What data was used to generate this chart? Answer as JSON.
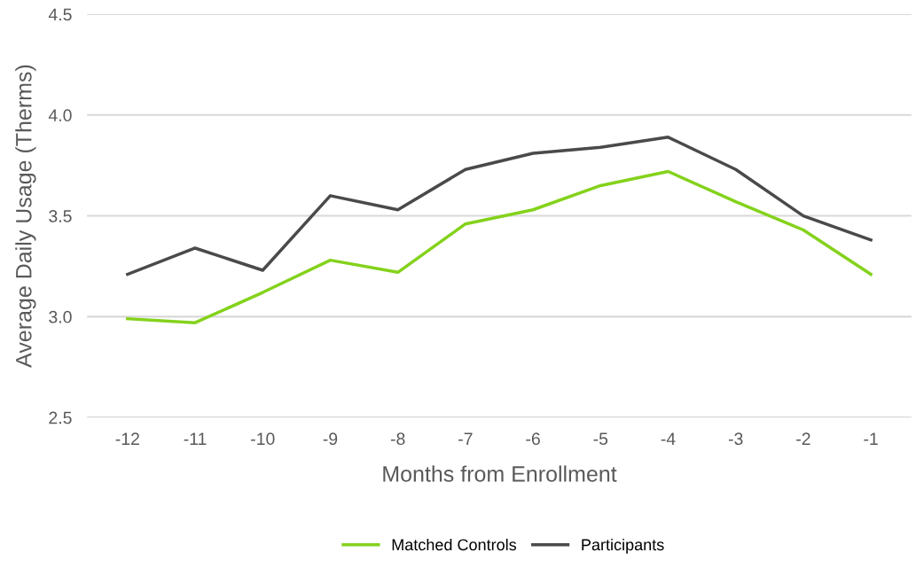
{
  "chart_data": {
    "type": "line",
    "xlabel": "Months from Enrollment",
    "ylabel": "Average Daily Usage (Therms)",
    "categories": [
      "-12",
      "-11",
      "-10",
      "-9",
      "-8",
      "-7",
      "-6",
      "-5",
      "-4",
      "-3",
      "-2",
      "-1"
    ],
    "series": [
      {
        "name": "Matched Controls",
        "color": "#84d21c",
        "values": [
          2.99,
          2.97,
          3.12,
          3.28,
          3.22,
          3.46,
          3.53,
          3.65,
          3.72,
          3.57,
          3.43,
          3.21
        ]
      },
      {
        "name": "Participants",
        "color": "#4a4a4c",
        "values": [
          3.21,
          3.34,
          3.23,
          3.6,
          3.53,
          3.73,
          3.81,
          3.84,
          3.89,
          3.73,
          3.5,
          3.38
        ]
      }
    ],
    "ylim": [
      2.5,
      4.5
    ],
    "yticks": [
      {
        "value": 2.5,
        "label": "2.5"
      },
      {
        "value": 3,
        "label": "3.0"
      },
      {
        "value": 3.5,
        "label": "3.5"
      },
      {
        "value": 4,
        "label": "4.0"
      },
      {
        "value": 4.5,
        "label": "4.5"
      }
    ],
    "grid": "y",
    "legend": "bottom",
    "marker": "none",
    "line_style": "solid"
  }
}
